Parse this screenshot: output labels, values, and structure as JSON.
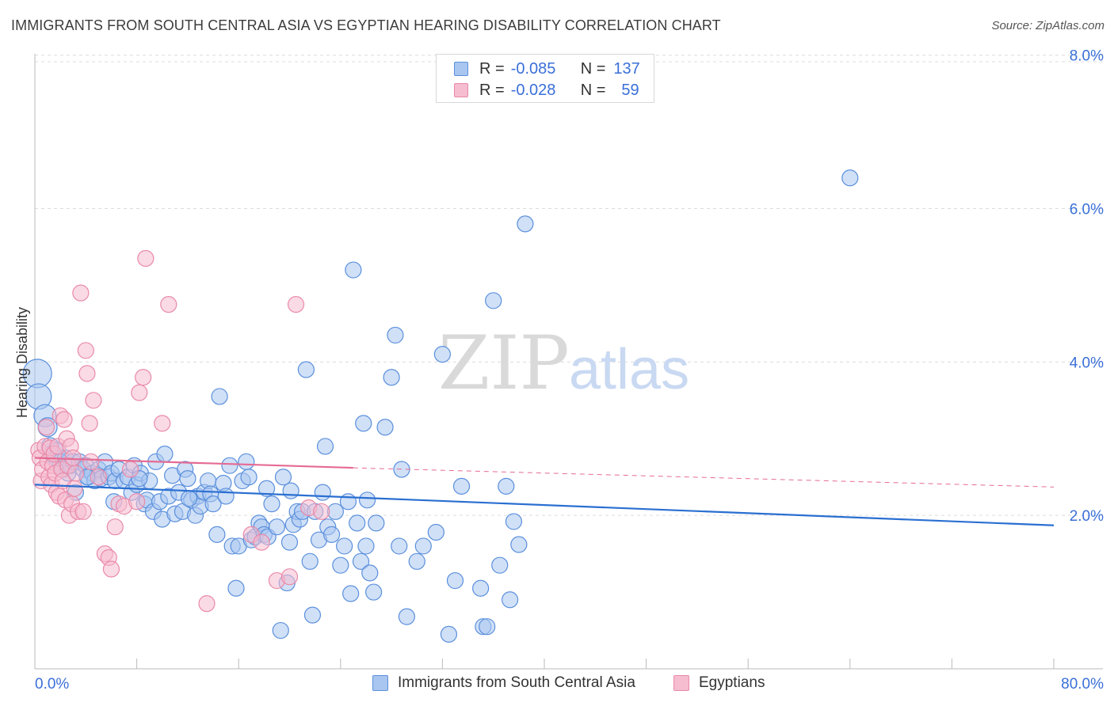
{
  "header": {
    "title": "IMMIGRANTS FROM SOUTH CENTRAL ASIA VS EGYPTIAN HEARING DISABILITY CORRELATION CHART",
    "source": "Source: ZipAtlas.com"
  },
  "watermark": {
    "zip": "ZIP",
    "atlas": "atlas"
  },
  "legend": {
    "series1": {
      "r_label": "R =",
      "r_value": "-0.085",
      "n_label": "N =",
      "n_value": "137"
    },
    "series2": {
      "r_label": "R =",
      "r_value": "-0.028",
      "n_label": "N =",
      "n_value": "59"
    }
  },
  "colors": {
    "blue_fill": "#a9c6f0",
    "blue_stroke": "#5a8fdc",
    "blue_line": "#2a6fd1",
    "pink_fill": "#f6bccf",
    "pink_stroke": "#e98aa8",
    "pink_line": "#e56b93",
    "axis_label": "#3a6fd8",
    "grid": "#dcdcdc"
  },
  "chart_data": {
    "type": "scatter",
    "title": "IMMIGRANTS FROM SOUTH CENTRAL ASIA VS EGYPTIAN HEARING DISABILITY CORRELATION CHART",
    "xlabel": "",
    "ylabel": "Hearing Disability",
    "xlim": [
      0,
      80
    ],
    "ylim": [
      0,
      8.1
    ],
    "x_tick_labels": [
      "0.0%",
      "80.0%"
    ],
    "y_ticks": [
      2,
      4,
      6,
      8
    ],
    "y_tick_labels": [
      "2.0%",
      "4.0%",
      "6.0%",
      "8.0%"
    ],
    "grid": "horizontal dashed",
    "legend_position": "top-center",
    "series": [
      {
        "name": "Immigrants from South Central Asia",
        "color": "#a9c6f0",
        "trend": {
          "x": [
            0,
            80
          ],
          "y": [
            2.4,
            1.87
          ],
          "style": "solid"
        },
        "points": [
          [
            0.2,
            3.85,
            18
          ],
          [
            0.3,
            3.55,
            16
          ],
          [
            0.8,
            3.3,
            14
          ],
          [
            1.0,
            3.15,
            12
          ],
          [
            1.2,
            2.9,
            11
          ],
          [
            1.4,
            2.8,
            11
          ],
          [
            1.6,
            2.75,
            10
          ],
          [
            1.8,
            2.85,
            10
          ],
          [
            2.0,
            2.7,
            10
          ],
          [
            2.2,
            2.6,
            10
          ],
          [
            2.4,
            2.75,
            10
          ],
          [
            2.6,
            2.55,
            10
          ],
          [
            2.8,
            2.65,
            10
          ],
          [
            3.0,
            2.7,
            10
          ],
          [
            3.2,
            2.3,
            10
          ],
          [
            3.5,
            2.7,
            10
          ],
          [
            3.8,
            2.6,
            10
          ],
          [
            4.0,
            2.65,
            10
          ],
          [
            4.2,
            2.5,
            10
          ],
          [
            4.5,
            2.55,
            10
          ],
          [
            4.7,
            2.45,
            10
          ],
          [
            5.0,
            2.6,
            10
          ],
          [
            5.2,
            2.48,
            10
          ],
          [
            5.5,
            2.7,
            10
          ],
          [
            5.8,
            2.5,
            10
          ],
          [
            6.0,
            2.55,
            10
          ],
          [
            6.3,
            2.45,
            10
          ],
          [
            6.6,
            2.6,
            10
          ],
          [
            7.0,
            2.45,
            10
          ],
          [
            7.3,
            2.5,
            10
          ],
          [
            7.6,
            2.3,
            10
          ],
          [
            7.8,
            2.65,
            10
          ],
          [
            8.0,
            2.4,
            10
          ],
          [
            8.3,
            2.55,
            10
          ],
          [
            8.6,
            2.15,
            10
          ],
          [
            8.8,
            2.2,
            10
          ],
          [
            9.0,
            2.45,
            10
          ],
          [
            9.3,
            2.05,
            10
          ],
          [
            9.5,
            2.7,
            10
          ],
          [
            9.8,
            2.18,
            10
          ],
          [
            10.0,
            1.95,
            10
          ],
          [
            10.2,
            2.8,
            10
          ],
          [
            10.5,
            2.25,
            10
          ],
          [
            10.8,
            2.52,
            10
          ],
          [
            11.0,
            2.02,
            10
          ],
          [
            11.3,
            2.3,
            10
          ],
          [
            11.6,
            2.05,
            10
          ],
          [
            11.8,
            2.6,
            10
          ],
          [
            12.0,
            2.48,
            10
          ],
          [
            12.3,
            2.2,
            10
          ],
          [
            12.6,
            2.0,
            10
          ],
          [
            12.8,
            2.25,
            10
          ],
          [
            13.0,
            2.12,
            10
          ],
          [
            13.3,
            2.3,
            10
          ],
          [
            13.6,
            2.45,
            10
          ],
          [
            13.8,
            2.28,
            10
          ],
          [
            14.0,
            2.15,
            10
          ],
          [
            14.3,
            1.75,
            10
          ],
          [
            14.5,
            3.55,
            10
          ],
          [
            14.8,
            2.42,
            10
          ],
          [
            15.0,
            2.25,
            10
          ],
          [
            15.3,
            2.65,
            10
          ],
          [
            15.5,
            1.6,
            10
          ],
          [
            15.8,
            1.05,
            10
          ],
          [
            16.0,
            1.6,
            10
          ],
          [
            16.3,
            2.45,
            10
          ],
          [
            16.6,
            2.7,
            10
          ],
          [
            16.8,
            2.5,
            10
          ],
          [
            17.0,
            1.68,
            10
          ],
          [
            17.3,
            1.72,
            10
          ],
          [
            17.6,
            1.9,
            10
          ],
          [
            17.8,
            1.85,
            10
          ],
          [
            18.0,
            1.75,
            10
          ],
          [
            18.3,
            1.72,
            10
          ],
          [
            18.6,
            2.15,
            10
          ],
          [
            19.0,
            1.85,
            10
          ],
          [
            19.3,
            0.5,
            10
          ],
          [
            19.5,
            2.5,
            10
          ],
          [
            19.8,
            1.12,
            10
          ],
          [
            20.0,
            1.65,
            10
          ],
          [
            20.3,
            1.88,
            10
          ],
          [
            20.6,
            2.05,
            10
          ],
          [
            20.8,
            1.95,
            10
          ],
          [
            21.0,
            2.05,
            10
          ],
          [
            21.3,
            3.9,
            10
          ],
          [
            21.6,
            1.4,
            10
          ],
          [
            21.8,
            0.7,
            10
          ],
          [
            22.0,
            2.05,
            10
          ],
          [
            22.3,
            1.68,
            10
          ],
          [
            22.6,
            2.3,
            10
          ],
          [
            22.8,
            2.9,
            10
          ],
          [
            23.0,
            1.85,
            10
          ],
          [
            23.3,
            1.75,
            10
          ],
          [
            23.6,
            2.05,
            10
          ],
          [
            24.0,
            1.35,
            10
          ],
          [
            24.3,
            1.6,
            10
          ],
          [
            24.6,
            2.18,
            10
          ],
          [
            24.8,
            0.98,
            10
          ],
          [
            25.0,
            5.2,
            10
          ],
          [
            25.3,
            1.9,
            10
          ],
          [
            25.6,
            1.4,
            10
          ],
          [
            25.8,
            3.2,
            10
          ],
          [
            26.0,
            1.6,
            10
          ],
          [
            26.3,
            1.25,
            10
          ],
          [
            26.6,
            1.0,
            10
          ],
          [
            26.8,
            1.9,
            10
          ],
          [
            27.5,
            3.15,
            10
          ],
          [
            28.0,
            3.8,
            10
          ],
          [
            28.3,
            4.35,
            10
          ],
          [
            28.6,
            1.6,
            10
          ],
          [
            28.8,
            2.6,
            10
          ],
          [
            29.2,
            0.68,
            10
          ],
          [
            30.0,
            1.4,
            10
          ],
          [
            30.5,
            1.6,
            10
          ],
          [
            31.5,
            1.78,
            10
          ],
          [
            32.0,
            4.1,
            10
          ],
          [
            32.5,
            0.45,
            10
          ],
          [
            33.0,
            1.15,
            10
          ],
          [
            33.5,
            2.38,
            10
          ],
          [
            35.0,
            1.05,
            10
          ],
          [
            35.2,
            0.55,
            10
          ],
          [
            35.5,
            0.55,
            10
          ],
          [
            36.0,
            4.8,
            10
          ],
          [
            36.5,
            1.35,
            10
          ],
          [
            37.0,
            2.38,
            10
          ],
          [
            37.3,
            0.9,
            10
          ],
          [
            37.6,
            1.92,
            10
          ],
          [
            38.0,
            1.62,
            10
          ],
          [
            38.5,
            5.8,
            10
          ],
          [
            64.0,
            6.4,
            10
          ],
          [
            4.1,
            2.5,
            10
          ],
          [
            6.2,
            2.18,
            10
          ],
          [
            8.2,
            2.48,
            10
          ],
          [
            12.1,
            2.22,
            10
          ],
          [
            18.2,
            2.35,
            10
          ],
          [
            20.1,
            2.32,
            10
          ],
          [
            26.1,
            2.2,
            10
          ]
        ]
      },
      {
        "name": "Egyptians",
        "color": "#f6bccf",
        "trend": {
          "x": [
            0,
            25,
            80
          ],
          "y": [
            2.75,
            2.62,
            2.37
          ],
          "style": "solid-then-dashed"
        },
        "points": [
          [
            0.3,
            2.85,
            10
          ],
          [
            0.4,
            2.75,
            10
          ],
          [
            0.5,
            2.45,
            10
          ],
          [
            0.6,
            2.6,
            10
          ],
          [
            0.8,
            2.9,
            10
          ],
          [
            0.9,
            3.15,
            10
          ],
          [
            1.0,
            2.7,
            10
          ],
          [
            1.1,
            2.5,
            10
          ],
          [
            1.2,
            2.88,
            10
          ],
          [
            1.3,
            2.4,
            10
          ],
          [
            1.4,
            2.65,
            10
          ],
          [
            1.5,
            2.8,
            10
          ],
          [
            1.6,
            2.55,
            10
          ],
          [
            1.7,
            2.3,
            10
          ],
          [
            1.8,
            2.9,
            10
          ],
          [
            1.9,
            2.25,
            10
          ],
          [
            2.0,
            3.3,
            10
          ],
          [
            2.1,
            2.6,
            10
          ],
          [
            2.2,
            2.45,
            10
          ],
          [
            2.3,
            3.25,
            10
          ],
          [
            2.4,
            2.2,
            10
          ],
          [
            2.5,
            3.0,
            10
          ],
          [
            2.6,
            2.65,
            10
          ],
          [
            2.7,
            2.0,
            10
          ],
          [
            2.8,
            2.9,
            10
          ],
          [
            2.9,
            2.15,
            10
          ],
          [
            3.0,
            2.75,
            10
          ],
          [
            3.1,
            2.35,
            10
          ],
          [
            3.2,
            2.55,
            10
          ],
          [
            3.4,
            2.05,
            10
          ],
          [
            3.6,
            4.9,
            10
          ],
          [
            3.8,
            2.05,
            10
          ],
          [
            4.0,
            4.15,
            10
          ],
          [
            4.1,
            3.85,
            10
          ],
          [
            4.3,
            3.2,
            10
          ],
          [
            4.4,
            2.7,
            10
          ],
          [
            4.6,
            3.5,
            10
          ],
          [
            5.0,
            2.5,
            10
          ],
          [
            5.5,
            1.5,
            10
          ],
          [
            5.8,
            1.45,
            10
          ],
          [
            6.0,
            1.3,
            10
          ],
          [
            6.3,
            1.85,
            10
          ],
          [
            6.6,
            2.15,
            10
          ],
          [
            7.0,
            2.12,
            10
          ],
          [
            7.5,
            2.6,
            10
          ],
          [
            8.0,
            2.18,
            10
          ],
          [
            8.2,
            3.6,
            10
          ],
          [
            8.5,
            3.8,
            10
          ],
          [
            8.7,
            5.35,
            10
          ],
          [
            10.0,
            3.2,
            10
          ],
          [
            10.5,
            4.75,
            10
          ],
          [
            13.5,
            0.85,
            10
          ],
          [
            17.0,
            1.75,
            10
          ],
          [
            17.8,
            1.65,
            10
          ],
          [
            19.0,
            1.15,
            10
          ],
          [
            20.0,
            1.2,
            10
          ],
          [
            20.5,
            4.75,
            10
          ],
          [
            21.5,
            2.1,
            10
          ],
          [
            22.5,
            2.05,
            10
          ]
        ]
      }
    ]
  }
}
